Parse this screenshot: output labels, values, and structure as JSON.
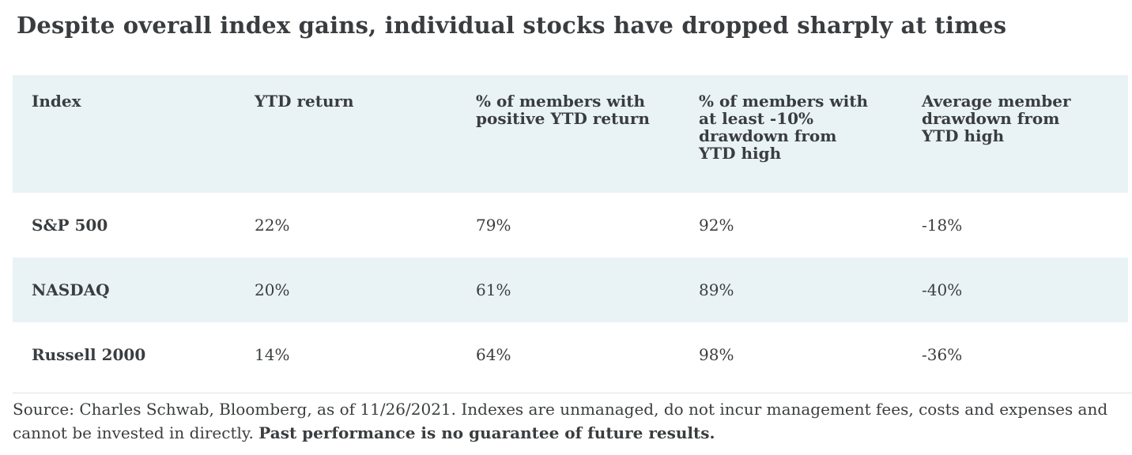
{
  "title": "Despite overall index gains, individual stocks have dropped sharply at times",
  "chart_data": {
    "type": "table",
    "title": "Despite overall index gains, individual stocks have dropped sharply at times",
    "columns": [
      "Index",
      "YTD return",
      "% of members with positive YTD return",
      "% of members with at least -10% drawdown from YTD high",
      "Average member drawdown from YTD high"
    ],
    "rows": [
      {
        "index": "S&P 500",
        "ytd_return": "22%",
        "pct_members_positive_ytd": "79%",
        "pct_members_min10_drawdown": "92%",
        "avg_member_drawdown": "-18%"
      },
      {
        "index": "NASDAQ",
        "ytd_return": "20%",
        "pct_members_positive_ytd": "61%",
        "pct_members_min10_drawdown": "89%",
        "avg_member_drawdown": "-40%"
      },
      {
        "index": "Russell 2000",
        "ytd_return": "14%",
        "pct_members_positive_ytd": "64%",
        "pct_members_min10_drawdown": "98%",
        "avg_member_drawdown": "-36%"
      }
    ],
    "source": "Source: Charles Schwab, Bloomberg, as of 11/26/2021."
  },
  "table_display": {
    "headers": [
      "Index",
      "YTD return",
      "% of members with\npositive YTD return",
      "% of members with\nat least -10%\ndrawdown from\nYTD high",
      "Average member\ndrawdown from\nYTD high"
    ]
  },
  "footer": {
    "source_text": "Source: Charles Schwab, Bloomberg, as of 11/26/2021. Indexes are unmanaged, do not incur management fees, costs and expenses and cannot be invested in directly. ",
    "disclaimer_bold": "Past performance is no guarantee of future results."
  },
  "colors": {
    "header_bg": "#e9f3f6",
    "row_alt_bg": "#e9f3f6",
    "text": "#3a3d3f",
    "divider": "#e2e2e2"
  }
}
